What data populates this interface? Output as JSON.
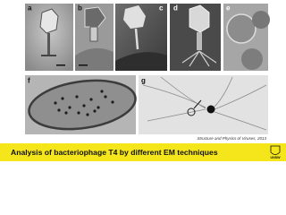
{
  "slide": {
    "panels": [
      "a",
      "b",
      "c",
      "d",
      "e",
      "f",
      "g"
    ],
    "source": "Structure and Physics of Viruses, 2013",
    "title": "Analysis of bacteriophage T4 by different EM techniques",
    "logo": "UNSW"
  }
}
